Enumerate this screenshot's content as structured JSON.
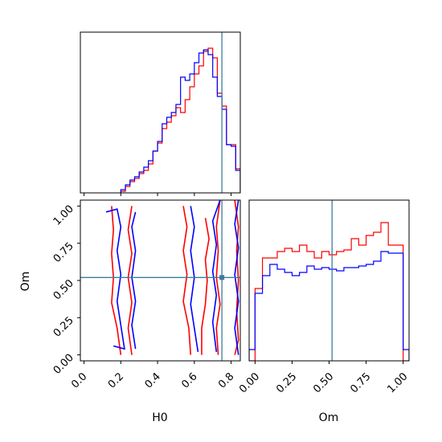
{
  "chart_data": {
    "type": "corner",
    "parameters": [
      "H0",
      "Om"
    ],
    "truths": {
      "H0": 0.75,
      "Om": 0.52
    },
    "series": [
      {
        "color": "#ff0000"
      },
      {
        "color": "#0000ff"
      }
    ],
    "colors": {
      "truth_line": "#3b7c9e",
      "frame": "#000000"
    },
    "panels": [
      {
        "id": "hist-H0",
        "type": "histogram",
        "xlim": [
          -0.02,
          0.85
        ],
        "ylim": [
          0,
          1.0
        ],
        "bin_edges": [
          0.2,
          0.225,
          0.25,
          0.275,
          0.3,
          0.325,
          0.35,
          0.375,
          0.4,
          0.425,
          0.45,
          0.475,
          0.5,
          0.525,
          0.55,
          0.575,
          0.6,
          0.625,
          0.65,
          0.675,
          0.7,
          0.725,
          0.75,
          0.775,
          0.8,
          0.825,
          0.85
        ],
        "series_values": [
          [
            0.01,
            0.04,
            0.07,
            0.09,
            0.12,
            0.14,
            0.18,
            0.26,
            0.31,
            0.4,
            0.44,
            0.48,
            0.53,
            0.5,
            0.58,
            0.66,
            0.74,
            0.79,
            0.88,
            0.9,
            0.84,
            0.62,
            0.54,
            0.3,
            0.3,
            0.15
          ],
          [
            0.02,
            0.05,
            0.08,
            0.1,
            0.13,
            0.16,
            0.2,
            0.26,
            0.32,
            0.43,
            0.47,
            0.5,
            0.55,
            0.72,
            0.7,
            0.74,
            0.81,
            0.87,
            0.89,
            0.86,
            0.72,
            0.6,
            0.52,
            0.3,
            0.29,
            0.14
          ]
        ]
      },
      {
        "id": "hist-Om",
        "type": "histogram",
        "xlim": [
          -0.04,
          1.04
        ],
        "ylim": [
          0,
          1.0
        ],
        "bin_edges": [
          -0.04,
          0.0,
          0.05,
          0.1,
          0.15,
          0.2,
          0.25,
          0.3,
          0.35,
          0.4,
          0.45,
          0.5,
          0.55,
          0.6,
          0.65,
          0.7,
          0.75,
          0.8,
          0.85,
          0.9,
          0.95,
          1.0,
          1.04
        ],
        "series_values": [
          [
            0.0,
            0.45,
            0.64,
            0.64,
            0.68,
            0.7,
            0.68,
            0.72,
            0.68,
            0.64,
            0.68,
            0.66,
            0.68,
            0.69,
            0.76,
            0.72,
            0.78,
            0.8,
            0.86,
            0.72,
            0.72,
            0.0
          ],
          [
            0.07,
            0.42,
            0.53,
            0.6,
            0.57,
            0.55,
            0.53,
            0.55,
            0.59,
            0.57,
            0.58,
            0.57,
            0.56,
            0.58,
            0.58,
            0.59,
            0.6,
            0.62,
            0.68,
            0.67,
            0.67,
            0.07
          ]
        ]
      },
      {
        "id": "contour-H0-Om",
        "type": "contour",
        "xlim": [
          -0.02,
          0.85
        ],
        "ylim": [
          -0.04,
          1.04
        ],
        "series_contours": [
          [
            [
              [
                0.15,
                1.0
              ],
              [
                0.16,
                0.84
              ],
              [
                0.15,
                0.68
              ],
              [
                0.16,
                0.52
              ],
              [
                0.15,
                0.35
              ],
              [
                0.18,
                0.18
              ],
              [
                0.2,
                0.0
              ]
            ],
            [
              [
                0.26,
                1.0
              ],
              [
                0.24,
                0.84
              ],
              [
                0.26,
                0.68
              ],
              [
                0.24,
                0.52
              ],
              [
                0.26,
                0.35
              ],
              [
                0.24,
                0.18
              ],
              [
                0.26,
                0.0
              ]
            ],
            [
              [
                0.54,
                1.0
              ],
              [
                0.56,
                0.86
              ],
              [
                0.54,
                0.7
              ],
              [
                0.56,
                0.54
              ],
              [
                0.54,
                0.36
              ],
              [
                0.57,
                0.18
              ],
              [
                0.58,
                0.0
              ]
            ],
            [
              [
                0.66,
                0.92
              ],
              [
                0.68,
                0.78
              ],
              [
                0.66,
                0.64
              ],
              [
                0.67,
                0.5
              ],
              [
                0.66,
                0.34
              ],
              [
                0.64,
                0.18
              ],
              [
                0.64,
                0.0
              ]
            ],
            [
              [
                0.74,
                1.04
              ],
              [
                0.72,
                0.86
              ],
              [
                0.73,
                0.7
              ],
              [
                0.72,
                0.52
              ],
              [
                0.74,
                0.34
              ],
              [
                0.72,
                0.18
              ],
              [
                0.73,
                0.0
              ]
            ],
            [
              [
                0.82,
                1.04
              ],
              [
                0.84,
                0.86
              ],
              [
                0.83,
                0.7
              ],
              [
                0.84,
                0.5
              ],
              [
                0.83,
                0.3
              ],
              [
                0.84,
                0.1
              ],
              [
                0.82,
                0.0
              ]
            ]
          ],
          [
            [
              [
                0.12,
                0.96
              ],
              [
                0.18,
                0.98
              ],
              [
                0.2,
                0.86
              ],
              [
                0.18,
                0.7
              ],
              [
                0.2,
                0.54
              ],
              [
                0.18,
                0.36
              ],
              [
                0.2,
                0.2
              ],
              [
                0.22,
                0.04
              ],
              [
                0.16,
                0.06
              ]
            ],
            [
              [
                0.28,
                0.96
              ],
              [
                0.26,
                0.86
              ],
              [
                0.28,
                0.7
              ],
              [
                0.26,
                0.52
              ],
              [
                0.28,
                0.36
              ],
              [
                0.26,
                0.2
              ],
              [
                0.28,
                0.04
              ]
            ],
            [
              [
                0.58,
                1.0
              ],
              [
                0.6,
                0.86
              ],
              [
                0.58,
                0.7
              ],
              [
                0.6,
                0.52
              ],
              [
                0.58,
                0.34
              ],
              [
                0.6,
                0.18
              ],
              [
                0.62,
                0.02
              ]
            ],
            [
              [
                0.74,
                1.04
              ],
              [
                0.7,
                0.9
              ],
              [
                0.72,
                0.74
              ],
              [
                0.7,
                0.56
              ],
              [
                0.72,
                0.4
              ],
              [
                0.7,
                0.22
              ],
              [
                0.72,
                0.02
              ]
            ],
            [
              [
                0.84,
                1.04
              ],
              [
                0.82,
                0.88
              ],
              [
                0.84,
                0.72
              ],
              [
                0.82,
                0.54
              ],
              [
                0.84,
                0.36
              ],
              [
                0.82,
                0.18
              ],
              [
                0.84,
                0.0
              ]
            ]
          ]
        ]
      }
    ]
  },
  "axes": {
    "H0": {
      "label": "H0",
      "ticks": [
        {
          "value": 0.0,
          "label": "0.0"
        },
        {
          "value": 0.2,
          "label": "0.2"
        },
        {
          "value": 0.4,
          "label": "0.4"
        },
        {
          "value": 0.6,
          "label": "0.6"
        },
        {
          "value": 0.8,
          "label": "0.8"
        }
      ]
    },
    "Om": {
      "label": "Om",
      "ticks": [
        {
          "value": 0.0,
          "label": "0.00"
        },
        {
          "value": 0.25,
          "label": "0.25"
        },
        {
          "value": 0.5,
          "label": "0.50"
        },
        {
          "value": 0.75,
          "label": "0.75"
        },
        {
          "value": 1.0,
          "label": "1.00"
        }
      ]
    }
  }
}
